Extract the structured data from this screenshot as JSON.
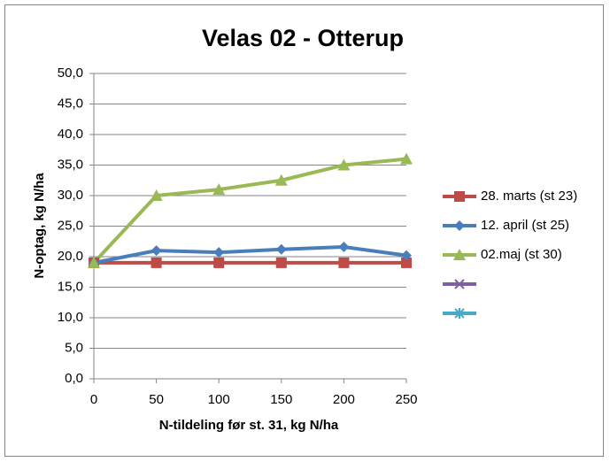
{
  "chart_data": {
    "type": "line",
    "title": "Velas 02 - Otterup",
    "xlabel": "N-tildeling før st. 31, kg N/ha",
    "ylabel": "N-optag, kg N/ha",
    "x": [
      0,
      50,
      100,
      150,
      200,
      250
    ],
    "xlim": [
      0,
      250
    ],
    "xticks": [
      0,
      50,
      100,
      150,
      200,
      250
    ],
    "ylim": [
      0,
      50
    ],
    "yticks": [
      {
        "value": 0,
        "label": "0,0"
      },
      {
        "value": 5,
        "label": "5,0"
      },
      {
        "value": 10,
        "label": "10,0"
      },
      {
        "value": 15,
        "label": "15,0"
      },
      {
        "value": 20,
        "label": "20,0"
      },
      {
        "value": 25,
        "label": "25,0"
      },
      {
        "value": 30,
        "label": "30,0"
      },
      {
        "value": 35,
        "label": "35,0"
      },
      {
        "value": 40,
        "label": "40,0"
      },
      {
        "value": 45,
        "label": "45,0"
      },
      {
        "value": 50,
        "label": "50,0"
      }
    ],
    "grid": true,
    "legend": "right",
    "series": [
      {
        "name": "28. marts (st 23)",
        "color": "#be4b48",
        "marker": "square",
        "values": [
          19,
          19,
          19,
          19,
          19,
          19
        ]
      },
      {
        "name": "12. april (st 25)",
        "color": "#4a7ebb",
        "marker": "diamond",
        "values": [
          19,
          21,
          20.7,
          21.2,
          21.6,
          20.2
        ]
      },
      {
        "name": "02.maj (st 30)",
        "color": "#98b954",
        "marker": "triangle",
        "values": [
          19,
          30,
          31,
          32.5,
          35,
          36
        ]
      },
      {
        "name": null,
        "color": "#7d60a0",
        "marker": "x",
        "values": [
          null,
          null,
          null,
          null,
          null,
          null
        ]
      },
      {
        "name": null,
        "color": "#46aac5",
        "marker": "star",
        "values": [
          null,
          null,
          null,
          null,
          null,
          null
        ]
      }
    ]
  }
}
